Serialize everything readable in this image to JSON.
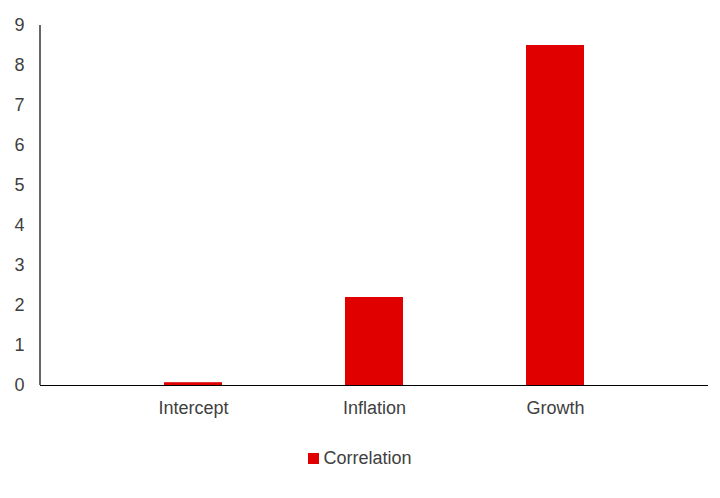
{
  "chart_data": {
    "type": "bar",
    "categories": [
      "Intercept",
      "Inflation",
      "Growth"
    ],
    "series": [
      {
        "name": "Correlation",
        "color": "#e00000",
        "values": [
          0.07,
          2.2,
          8.5
        ]
      }
    ],
    "ylim": [
      0,
      9
    ],
    "yticks": [
      0,
      1,
      2,
      3,
      4,
      5,
      6,
      7,
      8,
      9
    ],
    "grid": false,
    "legend": "bottom"
  }
}
